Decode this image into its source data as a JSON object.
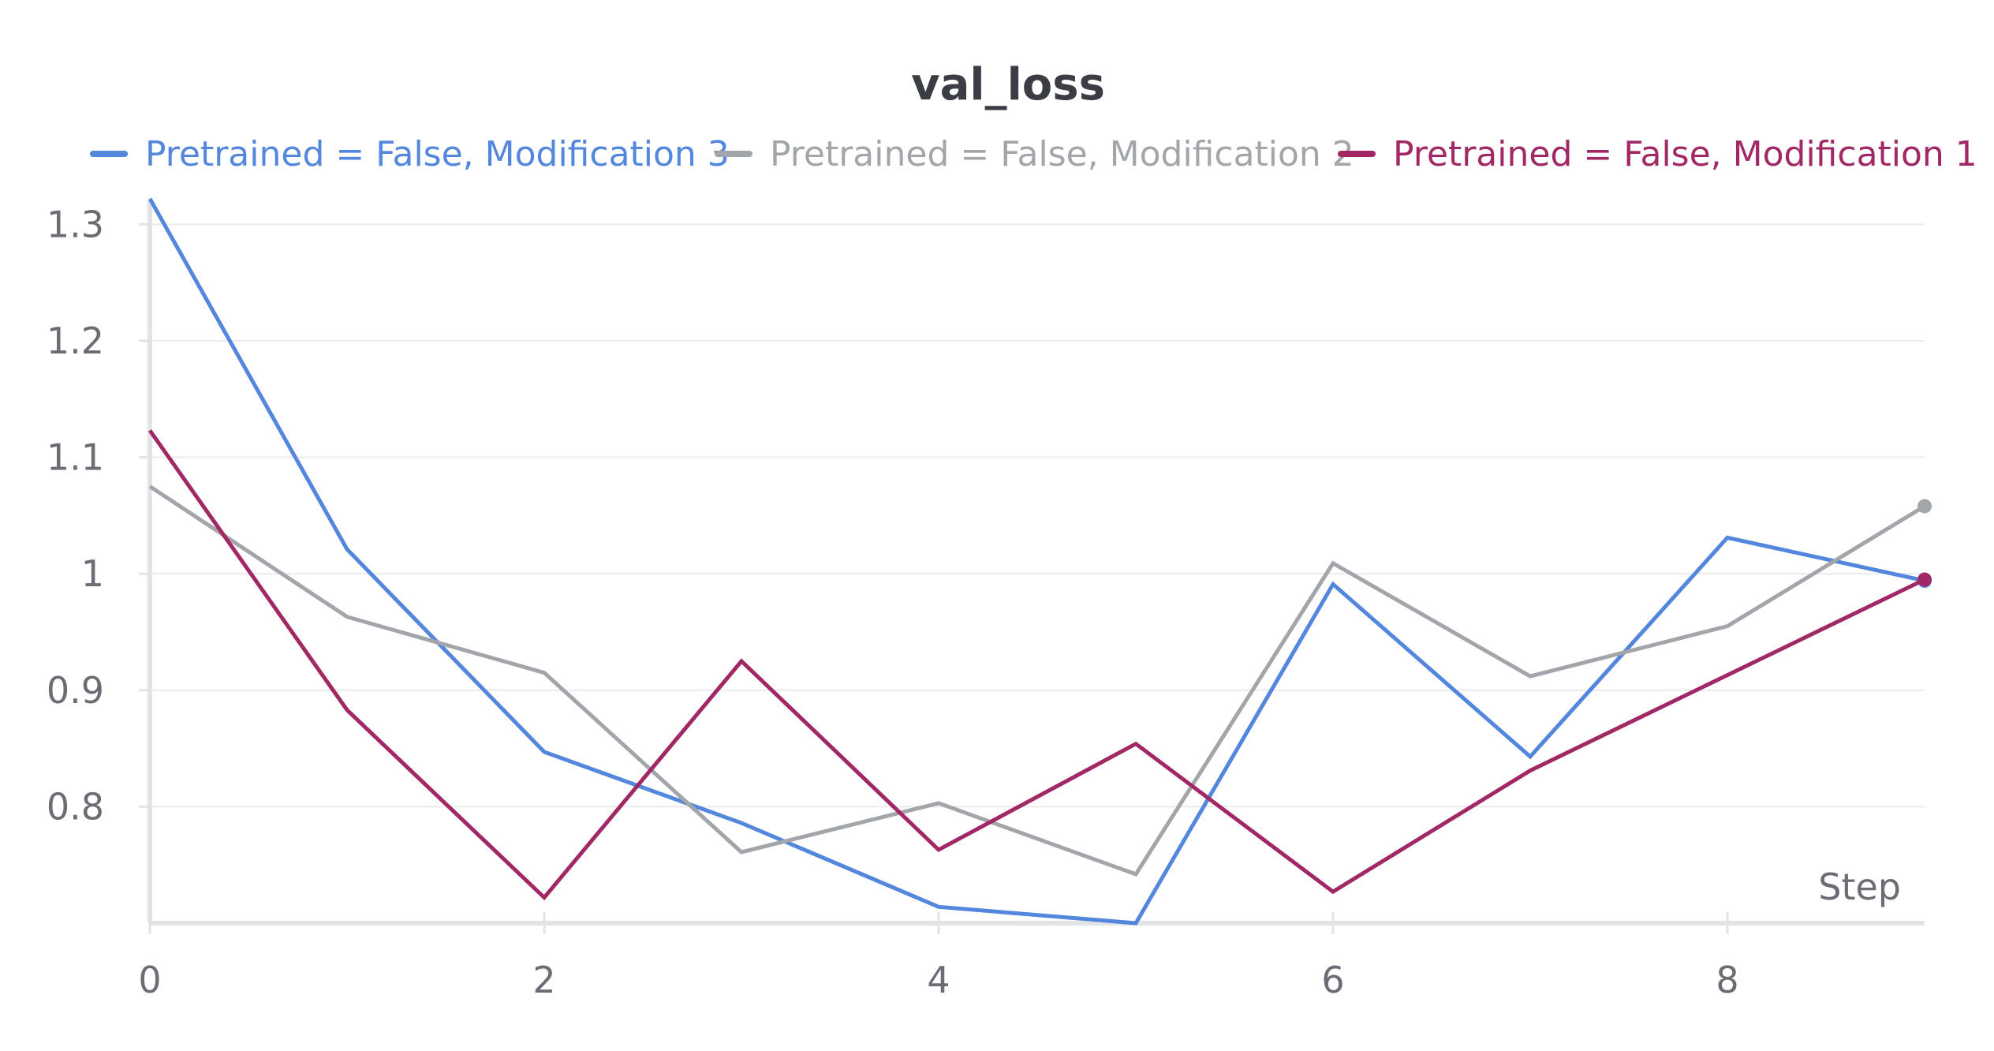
{
  "chart_data": {
    "type": "line",
    "title": "val_loss",
    "xlabel": "Step",
    "ylabel": "",
    "xlim": [
      0,
      9
    ],
    "ylim": [
      0.7,
      1.33
    ],
    "x_ticks": [
      0,
      2,
      4,
      6,
      8
    ],
    "y_ticks": [
      0.8,
      0.9,
      1,
      1.1,
      1.2,
      1.3
    ],
    "y_tick_labels": [
      "0.8",
      "0.9",
      "1",
      "1.1",
      "1.2",
      "1.3"
    ],
    "grid": true,
    "legend_position": "top",
    "x": [
      0,
      1,
      2,
      3,
      4,
      5,
      6,
      7,
      8,
      9
    ],
    "series": [
      {
        "name": "Pretrained = False, Modification 3",
        "color": "#5387dd",
        "values": [
          1.322,
          1.021,
          0.847,
          0.786,
          0.714,
          0.7,
          0.991,
          0.843,
          1.031,
          0.994
        ]
      },
      {
        "name": "Pretrained = False, Modification 2",
        "color": "#a2a5aa",
        "values": [
          1.075,
          0.963,
          0.915,
          0.761,
          0.803,
          0.742,
          1.009,
          0.912,
          0.955,
          1.058
        ]
      },
      {
        "name": "Pretrained = False, Modification 1",
        "color": "#a12864",
        "values": [
          1.123,
          0.883,
          0.722,
          0.925,
          0.763,
          0.854,
          0.727,
          0.831,
          0.913,
          0.995
        ]
      }
    ]
  },
  "colors": {
    "axis": "#e2e3e6",
    "grid": "#ebebee",
    "tick_text": "#6b6d74",
    "title_text": "#3b3d44"
  }
}
